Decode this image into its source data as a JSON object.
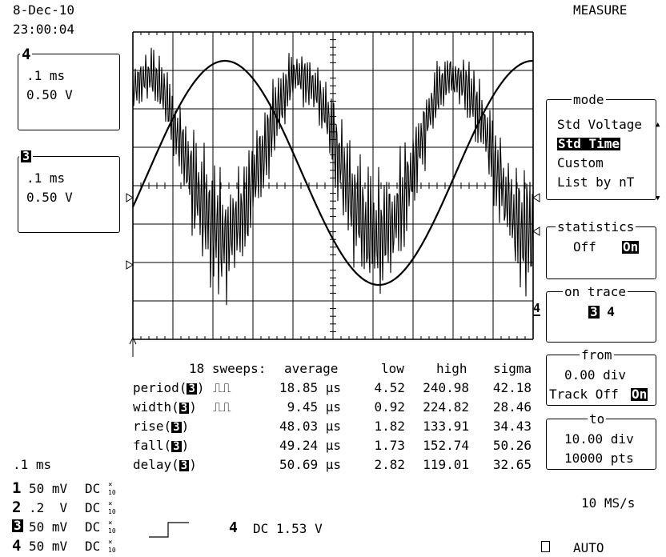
{
  "header": {
    "date": "8-Dec-10",
    "time": "23:00:04",
    "menu_title": "MEASURE"
  },
  "trace_boxes": [
    {
      "num": "4",
      "timebase": ".1 ms",
      "volts": "0.50 V"
    },
    {
      "num": "3",
      "timebase": ".1 ms",
      "volts": "0.50 V"
    }
  ],
  "menu": {
    "mode": {
      "title": "mode",
      "options": [
        "Std Voltage",
        "Std Time",
        "Custom",
        "List by nT"
      ],
      "selected": "Std Time"
    },
    "statistics": {
      "title": "statistics",
      "off": "Off",
      "on": "On",
      "selected": "On"
    },
    "on_trace": {
      "title": "on trace",
      "trace_a": "3",
      "trace_b": "4"
    },
    "from": {
      "title": "from",
      "value": "0.00 div",
      "track_label": "Track Off",
      "track_on": "On"
    },
    "to": {
      "title": "to",
      "value": "10.00 div",
      "pts": "10000 pts"
    }
  },
  "measurements": {
    "header": {
      "sweeps": "18 sweeps:",
      "average": "average",
      "low": "low",
      "high": "high",
      "sigma": "sigma"
    },
    "rows": [
      {
        "name": "period(",
        "trace": "3",
        "close": ")",
        "pulse": "⎍⎍",
        "average": "18.85 μs",
        "low": "4.52",
        "high": "240.98",
        "sigma": "42.18"
      },
      {
        "name": "width(",
        "trace": "3",
        "close": ")",
        "pulse": "⎍⎍",
        "average": "9.45 μs",
        "low": "0.92",
        "high": "224.82",
        "sigma": "28.46"
      },
      {
        "name": "rise(",
        "trace": "3",
        "close": ")",
        "pulse": "",
        "average": "48.03 μs",
        "low": "1.82",
        "high": "133.91",
        "sigma": "34.43"
      },
      {
        "name": "fall(",
        "trace": "3",
        "close": ")",
        "pulse": "",
        "average": "49.24 μs",
        "low": "1.73",
        "high": "152.74",
        "sigma": "50.26"
      },
      {
        "name": "delay(",
        "trace": "3",
        "close": ")",
        "pulse": "",
        "average": "50.69 μs",
        "low": "2.82",
        "high": "119.01",
        "sigma": "32.65"
      }
    ]
  },
  "timebase": ".1 ms",
  "channels": [
    {
      "num": "1",
      "scale": "50 mV",
      "coupling": "DC",
      "probe": "10"
    },
    {
      "num": "2",
      "scale": ".2  V",
      "coupling": "DC",
      "probe": "10"
    },
    {
      "num": "3",
      "scale": "50 mV",
      "coupling": "DC",
      "probe": "10"
    },
    {
      "num": "4",
      "scale": "50 mV",
      "coupling": "DC",
      "probe": "10"
    }
  ],
  "trigger": {
    "channel": "4",
    "coupling": "DC 1.53 V",
    "icon": "rising-edge-icon"
  },
  "sample_rate": "10 MS/s",
  "trigger_mode": "AUTO"
}
